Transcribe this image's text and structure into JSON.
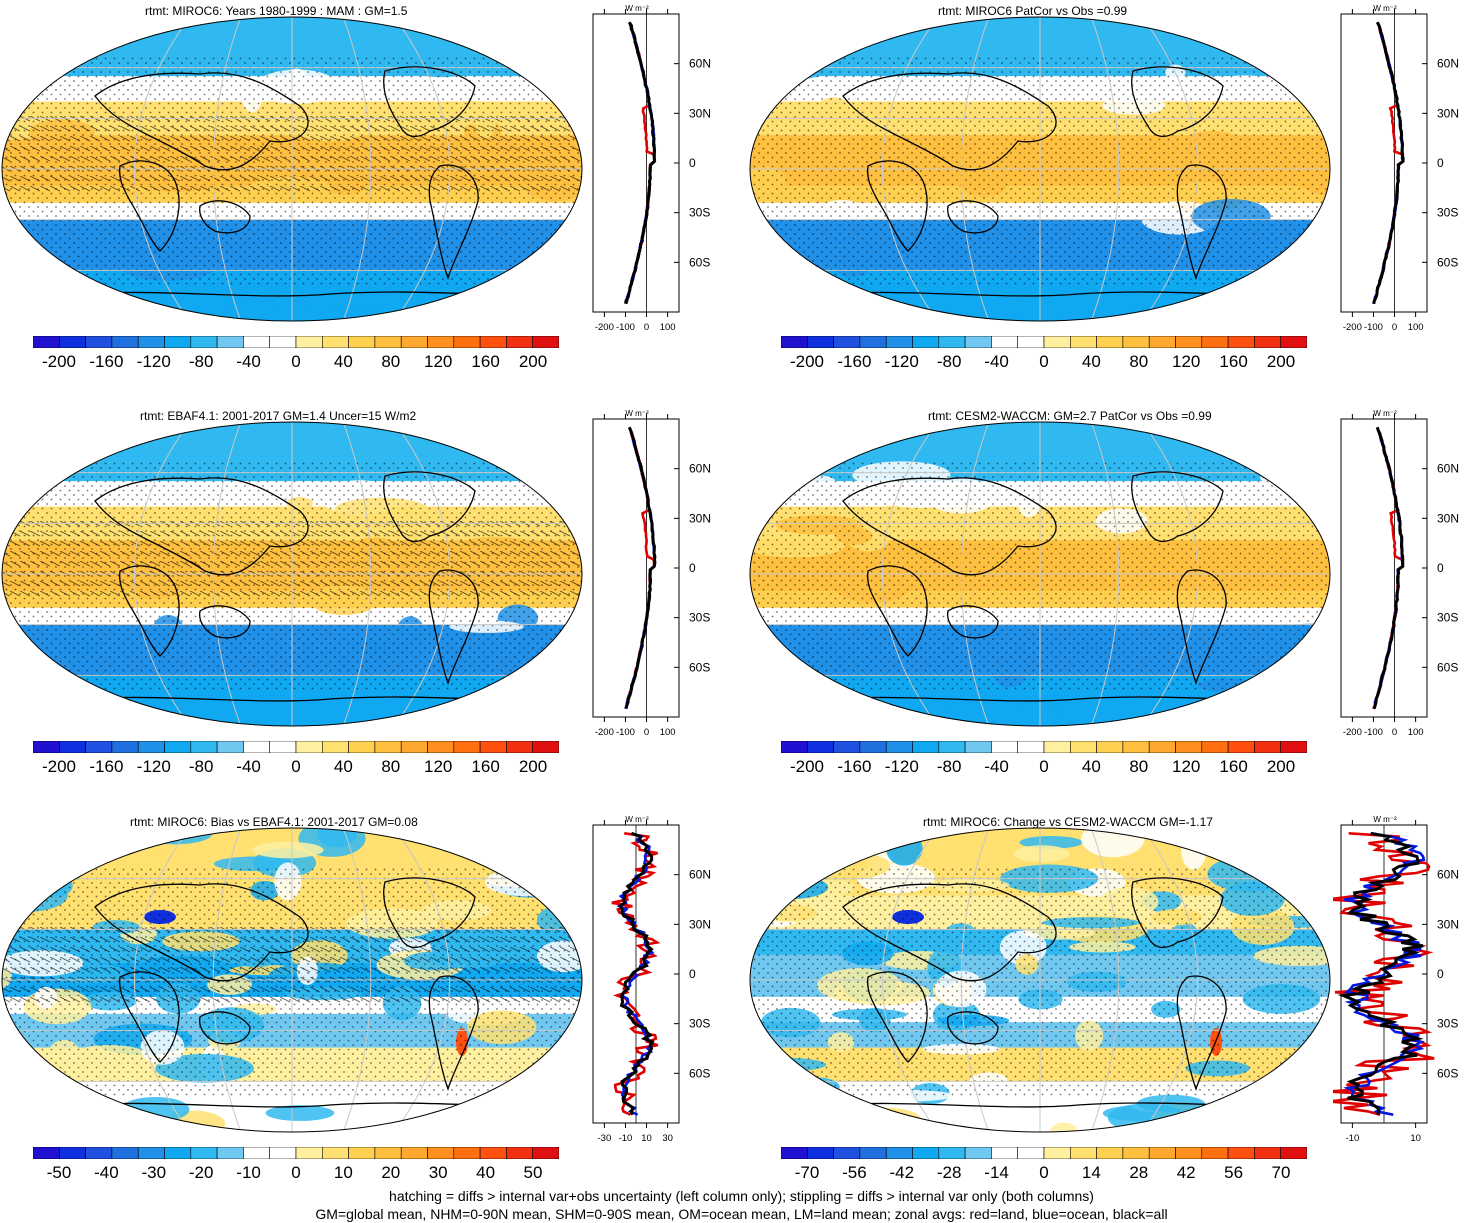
{
  "panels": [
    {
      "title": "rtmt: MIROC6: Years 1980-1999 : MAM : GM=1.5",
      "zonal_ticks": [
        "-200",
        "-100",
        "0",
        "100"
      ],
      "cbar_labels": [
        "-200",
        "-160",
        "-120",
        "-80",
        "-40",
        "0",
        "40",
        "80",
        "120",
        "160",
        "200"
      ],
      "cbar_colors": [
        "#2010d0",
        "#1030e0",
        "#2050e0",
        "#2070e0",
        "#2090e8",
        "#10a8f0",
        "#30b8f0",
        "#70c8f0",
        "#ffffff",
        "#ffffff",
        "#fff0a0",
        "#ffe070",
        "#ffd050",
        "#ffc040",
        "#ffa830",
        "#ff9020",
        "#ff7010",
        "#ff5010",
        "#f03010",
        "#e01010"
      ]
    },
    {
      "title": "rtmt: MIROC6 PatCor vs Obs =0.99",
      "zonal_ticks": [
        "-200",
        "-100",
        "0",
        "100"
      ],
      "cbar_labels": [
        "-200",
        "-160",
        "-120",
        "-80",
        "-40",
        "0",
        "40",
        "80",
        "120",
        "160",
        "200"
      ],
      "cbar_colors": [
        "#2010d0",
        "#1030e0",
        "#2050e0",
        "#2070e0",
        "#2090e8",
        "#10a8f0",
        "#30b8f0",
        "#70c8f0",
        "#ffffff",
        "#ffffff",
        "#fff0a0",
        "#ffe070",
        "#ffd050",
        "#ffc040",
        "#ffa830",
        "#ff9020",
        "#ff7010",
        "#ff5010",
        "#f03010",
        "#e01010"
      ]
    },
    {
      "title": "rtmt: EBAF4.1: 2001-2017 GM=1.4 Uncer=15 W/m2",
      "zonal_ticks": [
        "-200",
        "-100",
        "0",
        "100"
      ],
      "cbar_labels": [
        "-200",
        "-160",
        "-120",
        "-80",
        "-40",
        "0",
        "40",
        "80",
        "120",
        "160",
        "200"
      ],
      "cbar_colors": [
        "#2010d0",
        "#1030e0",
        "#2050e0",
        "#2070e0",
        "#2090e8",
        "#10a8f0",
        "#30b8f0",
        "#70c8f0",
        "#ffffff",
        "#ffffff",
        "#fff0a0",
        "#ffe070",
        "#ffd050",
        "#ffc040",
        "#ffa830",
        "#ff9020",
        "#ff7010",
        "#ff5010",
        "#f03010",
        "#e01010"
      ]
    },
    {
      "title": "rtmt: CESM2-WACCM: GM=2.7 PatCor vs Obs =0.99",
      "zonal_ticks": [
        "-200",
        "-100",
        "0",
        "100"
      ],
      "cbar_labels": [
        "-200",
        "-160",
        "-120",
        "-80",
        "-40",
        "0",
        "40",
        "80",
        "120",
        "160",
        "200"
      ],
      "cbar_colors": [
        "#2010d0",
        "#1030e0",
        "#2050e0",
        "#2070e0",
        "#2090e8",
        "#10a8f0",
        "#30b8f0",
        "#70c8f0",
        "#ffffff",
        "#ffffff",
        "#fff0a0",
        "#ffe070",
        "#ffd050",
        "#ffc040",
        "#ffa830",
        "#ff9020",
        "#ff7010",
        "#ff5010",
        "#f03010",
        "#e01010"
      ]
    },
    {
      "title": "rtmt: MIROC6: Bias vs EBAF4.1: 2001-2017 GM=0.08",
      "zonal_ticks": [
        "-30",
        "-10",
        "10",
        "30"
      ],
      "cbar_labels": [
        "-50",
        "-40",
        "-30",
        "-20",
        "-10",
        "0",
        "10",
        "20",
        "30",
        "40",
        "50"
      ],
      "cbar_colors": [
        "#2010d0",
        "#1030e0",
        "#2050e0",
        "#2070e0",
        "#2090e8",
        "#10a8f0",
        "#30b8f0",
        "#70c8f0",
        "#ffffff",
        "#ffffff",
        "#fff0a0",
        "#ffe070",
        "#ffd050",
        "#ffc040",
        "#ffa830",
        "#ff9020",
        "#ff7010",
        "#ff5010",
        "#f03010",
        "#e01010"
      ]
    },
    {
      "title": "rtmt: MIROC6: Change vs CESM2-WACCM GM=-1.17",
      "zonal_ticks": [
        "-10",
        "10"
      ],
      "cbar_labels": [
        "-70",
        "-56",
        "-42",
        "-28",
        "-14",
        "0",
        "14",
        "28",
        "42",
        "56",
        "70"
      ],
      "cbar_colors": [
        "#2010d0",
        "#1030e0",
        "#2050e0",
        "#2070e0",
        "#2090e8",
        "#10a8f0",
        "#30b8f0",
        "#70c8f0",
        "#ffffff",
        "#ffffff",
        "#fff0a0",
        "#ffe070",
        "#ffd050",
        "#ffc040",
        "#ffa830",
        "#ff9020",
        "#ff7010",
        "#ff5010",
        "#f03010",
        "#e01010"
      ]
    }
  ],
  "zonal_unit": "W m⁻²",
  "lat_labels": [
    "60N",
    "30N",
    "0",
    "30S",
    "60S"
  ],
  "zonal_line_colors": {
    "land": "#e00000",
    "ocean": "#0018e0",
    "all": "#000000"
  },
  "footer": {
    "line1": "hatching = diffs > internal var+obs uncertainty (left column only); stippling = diffs > internal var only (both columns)",
    "line2": "GM=global mean, NHM=0-90N mean, SHM=0-90S mean, OM=ocean mean, LM=land mean; zonal avgs: red=land, blue=ocean, black=all"
  }
}
